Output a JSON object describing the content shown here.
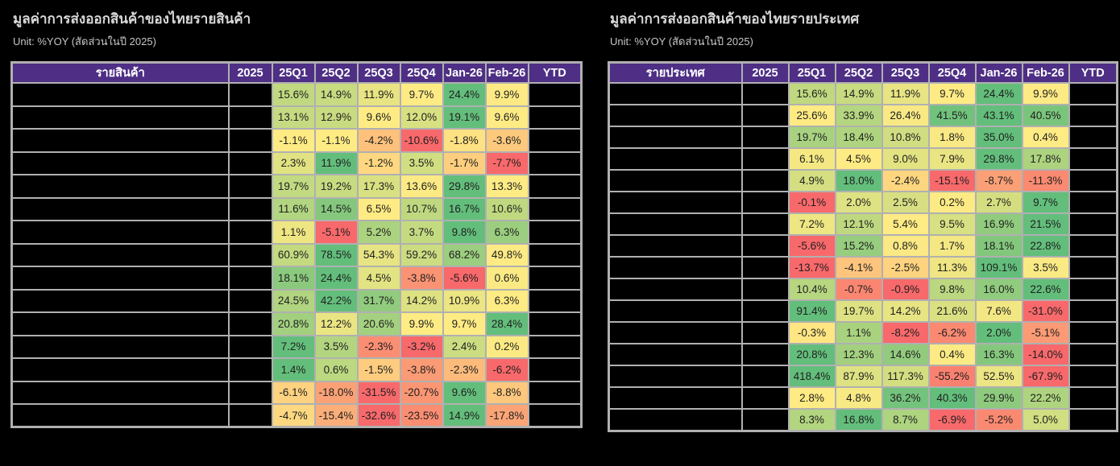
{
  "page": {
    "background": "#000000"
  },
  "colors": {
    "header_bg": "#4e2f85",
    "header_text": "#ffffff",
    "border": "#b0b0b0",
    "redacted_cell": "#000000",
    "cell_text": "#1f1f1f",
    "title_text": "#d9d9d9",
    "subtitle_text": "#c6c6c6",
    "scale_red": "#f8696b",
    "scale_yellow": "#ffeb84",
    "scale_green": "#63be7b"
  },
  "chart_data": [
    {
      "type": "heatmap",
      "title": "มูลค่าการส่งออกสินค้าของไทยรายสินค้า",
      "subtitle": "Unit: %YOY (สัดส่วนในปี 2025)",
      "columns": [
        "รายสินค้า",
        "2025",
        "25Q1",
        "25Q2",
        "25Q3",
        "25Q4",
        "Jan-26",
        "Feb-26",
        "YTD"
      ],
      "value_columns": [
        "25Q1",
        "25Q2",
        "25Q3",
        "25Q4",
        "Jan-26",
        "Feb-26"
      ],
      "redacted_columns": [
        "รายสินค้า",
        "2025",
        "YTD"
      ],
      "value_format": "percent_1dp",
      "color_scale": "per-row red-yellow-green, yellow anchored at 0",
      "rows": [
        [
          15.6,
          14.9,
          11.9,
          9.7,
          24.4,
          9.9
        ],
        [
          13.1,
          12.9,
          9.6,
          12.0,
          19.1,
          9.6
        ],
        [
          -1.1,
          -1.1,
          -4.2,
          -10.6,
          -1.8,
          -3.6
        ],
        [
          2.3,
          11.9,
          -1.2,
          3.5,
          -1.7,
          -7.7
        ],
        [
          19.7,
          19.2,
          17.3,
          13.6,
          29.8,
          13.3
        ],
        [
          11.6,
          14.5,
          6.5,
          10.7,
          16.7,
          10.6
        ],
        [
          1.1,
          -5.1,
          5.2,
          3.7,
          9.8,
          6.3
        ],
        [
          60.9,
          78.5,
          54.3,
          59.2,
          68.2,
          49.8
        ],
        [
          18.1,
          24.4,
          4.5,
          -3.8,
          -5.6,
          0.6
        ],
        [
          24.5,
          42.2,
          31.7,
          14.2,
          10.9,
          6.3
        ],
        [
          20.8,
          12.2,
          20.6,
          9.9,
          9.7,
          28.4
        ],
        [
          7.2,
          3.5,
          -2.3,
          -3.2,
          2.4,
          0.2
        ],
        [
          1.4,
          0.6,
          -1.5,
          -3.8,
          -2.3,
          -6.2
        ],
        [
          -6.1,
          -18.0,
          -31.5,
          -20.7,
          9.6,
          -8.8
        ],
        [
          -4.7,
          -15.4,
          -32.6,
          -23.5,
          14.9,
          -17.8
        ]
      ]
    },
    {
      "type": "heatmap",
      "title": "มูลค่าการส่งออกสินค้าของไทยรายประเทศ",
      "subtitle": "Unit: %YOY (สัดส่วนในปี 2025)",
      "columns": [
        "รายประเทศ",
        "2025",
        "25Q1",
        "25Q2",
        "25Q3",
        "25Q4",
        "Jan-26",
        "Feb-26",
        "YTD"
      ],
      "value_columns": [
        "25Q1",
        "25Q2",
        "25Q3",
        "25Q4",
        "Jan-26",
        "Feb-26"
      ],
      "redacted_columns": [
        "รายประเทศ",
        "2025",
        "YTD"
      ],
      "value_format": "percent_1dp",
      "color_scale": "per-row red-yellow-green, yellow anchored at 0",
      "rows": [
        [
          15.6,
          14.9,
          11.9,
          9.7,
          24.4,
          9.9
        ],
        [
          25.6,
          33.9,
          26.4,
          41.5,
          43.1,
          40.5
        ],
        [
          19.7,
          18.4,
          10.8,
          1.8,
          35.0,
          0.4
        ],
        [
          6.1,
          4.5,
          9.0,
          7.9,
          29.8,
          17.8
        ],
        [
          4.9,
          18.0,
          -2.4,
          -15.1,
          -8.7,
          -11.3
        ],
        [
          -0.1,
          2.0,
          2.5,
          0.2,
          2.7,
          9.7
        ],
        [
          7.2,
          12.1,
          5.4,
          9.5,
          16.9,
          21.5
        ],
        [
          -5.6,
          15.2,
          0.8,
          1.7,
          18.1,
          22.8
        ],
        [
          -13.7,
          -4.1,
          -2.5,
          11.3,
          109.1,
          3.5
        ],
        [
          10.4,
          -0.7,
          -0.9,
          9.8,
          16.0,
          22.6
        ],
        [
          91.4,
          19.7,
          14.2,
          21.6,
          7.6,
          -31.0
        ],
        [
          -0.3,
          1.1,
          -8.2,
          -6.2,
          2.0,
          -5.1
        ],
        [
          20.8,
          12.3,
          14.6,
          0.4,
          16.3,
          -14.0
        ],
        [
          418.4,
          87.9,
          117.3,
          -55.2,
          52.5,
          -67.9
        ],
        [
          2.8,
          4.8,
          36.2,
          40.3,
          29.9,
          22.2
        ],
        [
          8.3,
          16.8,
          8.7,
          -6.9,
          -5.2,
          5.0
        ]
      ]
    }
  ]
}
